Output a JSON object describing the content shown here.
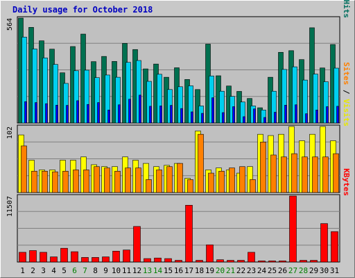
{
  "chart_data": {
    "type": "bar",
    "title": "Daily usage for October 2018",
    "categories": [
      "1",
      "2",
      "3",
      "4",
      "5",
      "6",
      "7",
      "8",
      "9",
      "10",
      "11",
      "12",
      "13",
      "14",
      "15",
      "16",
      "17",
      "18",
      "19",
      "20",
      "21",
      "22",
      "23",
      "24",
      "25",
      "26",
      "27",
      "28",
      "29",
      "30",
      "31"
    ],
    "weekend_days": [
      "6",
      "7",
      "13",
      "14",
      "20",
      "21",
      "27",
      "28"
    ],
    "panels": [
      {
        "name": "hits-files-pages",
        "ymax_label": "564",
        "ylim": [
          0,
          564
        ],
        "side_label": [
          {
            "text": "Pages",
            "color": "#00c0e8"
          },
          {
            "text": " / ",
            "color": "#000000"
          },
          {
            "text": "Files",
            "color": "#0000ff"
          },
          {
            "text": " / ",
            "color": "#000000"
          },
          {
            "text": "Hits",
            "color": "#006f5f"
          }
        ],
        "series": [
          {
            "name": "Hits",
            "color": "#007050",
            "values": [
              564,
              514,
              442,
              397,
              270,
              411,
              478,
              330,
              358,
              331,
              428,
              395,
              291,
              317,
              246,
              297,
              234,
              180,
              424,
              254,
              199,
              170,
              132,
              82,
              246,
              380,
              389,
              341,
              512,
              296,
              422
            ]
          },
          {
            "name": "Files",
            "color": "#00d0f0",
            "values": [
              462,
              398,
              350,
              315,
              213,
              281,
              284,
              244,
              258,
              246,
              326,
              336,
              224,
              262,
              180,
              195,
              200,
              92,
              253,
              171,
              143,
              113,
              92,
              70,
              171,
              288,
              302,
              231,
              263,
              222,
              295
            ]
          },
          {
            "name": "Pages",
            "color": "#0000ff",
            "values": [
              115,
              110,
              104,
              96,
              95,
              120,
              100,
              110,
              70,
              98,
              128,
              150,
              90,
              92,
              95,
              78,
              60,
              52,
              136,
              56,
              88,
              34,
              76,
              30,
              58,
              96,
              98,
              50,
              70,
              88,
              90
            ]
          }
        ]
      },
      {
        "name": "visits-sites",
        "ymax_label": "102",
        "ylim": [
          0,
          102
        ],
        "side_label": [
          {
            "text": "Sites",
            "color": "#ff8000"
          },
          {
            "text": " / ",
            "color": "#000000"
          },
          {
            "text": "Visits",
            "color": "#e8e800"
          }
        ],
        "series": [
          {
            "name": "Visits",
            "color": "#ffff00",
            "values": [
              89,
              50,
              35,
              35,
              50,
              50,
              55,
              43,
              40,
              40,
              55,
              50,
              45,
              40,
              42,
              45,
              22,
              95,
              35,
              38,
              35,
              30,
              40,
              90,
              88,
              90,
              102,
              80,
              90,
              102,
              80
            ]
          },
          {
            "name": "Sites",
            "color": "#ff8000",
            "values": [
              72,
              33,
              33,
              32,
              33,
              35,
              35,
              40,
              38,
              33,
              38,
              38,
              20,
              35,
              40,
              45,
              20,
              90,
              30,
              33,
              38,
              40,
              20,
              78,
              58,
              55,
              60,
              55,
              55,
              55,
              60
            ]
          }
        ]
      },
      {
        "name": "kbytes",
        "ymax_label": "11507",
        "ylim": [
          0,
          11507
        ],
        "side_label": [
          {
            "text": "KBytes",
            "color": "#ff0000"
          }
        ],
        "series": [
          {
            "name": "KBytes",
            "color": "#ff0000",
            "values": [
              1700,
              2000,
              1700,
              900,
              2400,
              1800,
              800,
              800,
              900,
              1900,
              2100,
              6200,
              600,
              700,
              600,
              300,
              9900,
              300,
              3000,
              400,
              300,
              300,
              1700,
              200,
              200,
              200,
              11507,
              300,
              300,
              6700,
              5300
            ]
          }
        ]
      }
    ],
    "xlabel": "",
    "ylabel": "",
    "grid": true,
    "legend": "right"
  }
}
